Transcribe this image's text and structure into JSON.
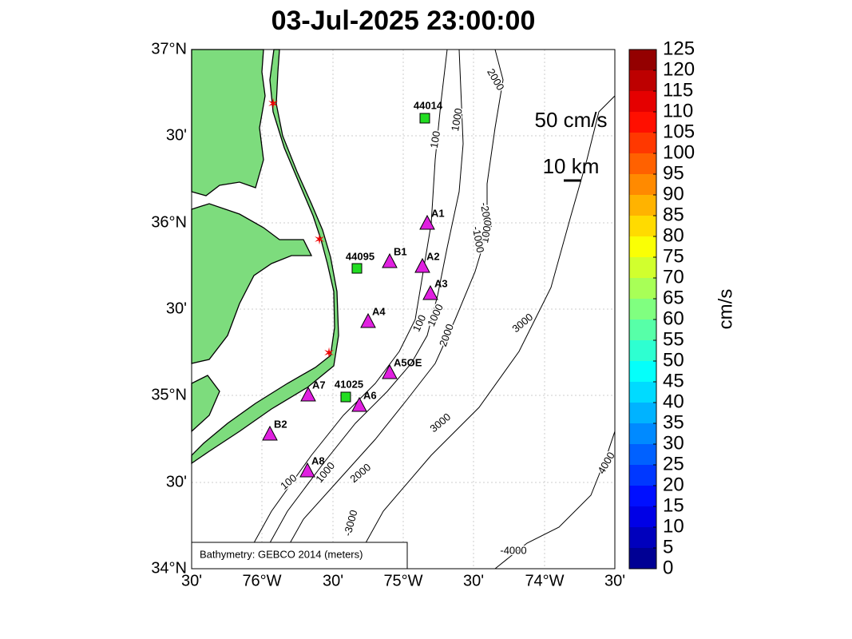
{
  "title": "03-Jul-2025 23:00:00",
  "map": {
    "lat_ticks": [
      "37°N",
      "30'",
      "36°N",
      "30'",
      "35°N",
      "30'",
      "34°N"
    ],
    "lon_ticks": [
      "30'",
      "76°W",
      "30'",
      "75°W",
      "30'",
      "74°W",
      "30'"
    ],
    "stations": [
      "A1",
      "B1",
      "A2",
      "A3",
      "A4",
      "A5OE",
      "A6",
      "A7",
      "B2",
      "A8"
    ],
    "buoys": [
      "44014",
      "44095",
      "41025"
    ],
    "contour_labels": [
      "100",
      "1000",
      "2000",
      "-3000",
      "3000",
      "3000",
      "4000",
      "-4000",
      "2000",
      "1000",
      "100",
      "1000",
      "2000",
      "-2000",
      "1000",
      "100",
      "-1000"
    ],
    "scale": {
      "speed": "50 cm/s",
      "distance": "10 km"
    },
    "note": "Bathymetry: GEBCO 2014 (meters)"
  },
  "colorbar": {
    "ticks": [
      0,
      5,
      10,
      15,
      20,
      25,
      30,
      35,
      40,
      45,
      50,
      55,
      60,
      65,
      70,
      75,
      80,
      85,
      90,
      95,
      100,
      105,
      110,
      115,
      120,
      125
    ],
    "label": "cm/s"
  }
}
